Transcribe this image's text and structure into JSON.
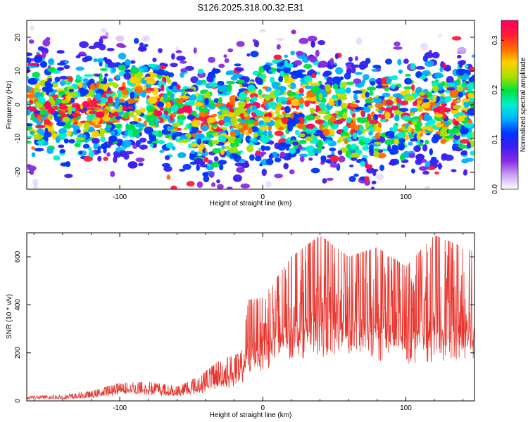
{
  "colors": {
    "frame": "#000000",
    "snr_line": "#e8352d"
  },
  "chart_data": [
    {
      "type": "heatmap",
      "title": "S126.2025.318.00.32.E31",
      "xlabel": "Height of straight line (km)",
      "ylabel": "Frequency (Hz)",
      "xlim": [
        -165,
        148
      ],
      "ylim": [
        -25,
        25
      ],
      "xticks": [
        -100,
        0,
        100
      ],
      "xtick_labels": [
        "-100",
        "0",
        "100"
      ],
      "yticks": [
        20,
        10,
        0,
        -10,
        -20
      ],
      "ytick_labels": [
        "20",
        "10",
        "0",
        "-10",
        "-20"
      ],
      "colorbar": {
        "label": "Normalized spectral amplitude",
        "range": [
          0.0,
          0.34
        ],
        "ticks": [
          0.0,
          0.1,
          0.2,
          0.3
        ],
        "tick_labels": [
          "0.0",
          "0.1",
          "0.2",
          "0.3"
        ],
        "colormap": [
          "#ffffff",
          "#c9a3f5",
          "#8a2be2",
          "#3b1ef0",
          "#0033ff",
          "#00b0ff",
          "#00f0d0",
          "#00e040",
          "#a8e000",
          "#ffd000",
          "#ff6a00",
          "#ff1a3a",
          "#ff0060"
        ]
      },
      "band_center_hz": [
        [
          -165,
          0
        ],
        [
          -130,
          -2
        ],
        [
          -100,
          0
        ],
        [
          -80,
          0
        ],
        [
          -50,
          -4
        ],
        [
          -30,
          -6
        ],
        [
          -15,
          -3
        ],
        [
          0,
          -1
        ],
        [
          25,
          0
        ],
        [
          45,
          -2
        ],
        [
          60,
          -5
        ],
        [
          80,
          -4
        ],
        [
          100,
          -3
        ],
        [
          120,
          -2
        ],
        [
          148,
          -1
        ]
      ],
      "band_halfwidth_hz": 12,
      "peak_amplitude": 0.34
    },
    {
      "type": "line",
      "xlabel": "Height of straight line (km)",
      "ylabel": "SNR (10 * v/v)",
      "xlim": [
        -165,
        148
      ],
      "ylim": [
        0,
        700
      ],
      "xticks": [
        -100,
        0,
        100
      ],
      "xtick_labels": [
        "-100",
        "0",
        "100"
      ],
      "yticks": [
        0,
        200,
        400,
        600
      ],
      "ytick_labels": [
        "0",
        "200",
        "400",
        "600"
      ],
      "series": [
        {
          "name": "SNR",
          "envelope_x": [
            -165,
            -140,
            -120,
            -100,
            -80,
            -60,
            -45,
            -30,
            -15,
            -10,
            0,
            20,
            40,
            60,
            80,
            100,
            120,
            148
          ],
          "envelope_max": [
            20,
            25,
            40,
            75,
            80,
            60,
            100,
            170,
            200,
            420,
            430,
            600,
            690,
            600,
            640,
            560,
            690,
            620
          ],
          "envelope_mean": [
            10,
            10,
            15,
            35,
            35,
            25,
            40,
            70,
            90,
            160,
            180,
            230,
            260,
            250,
            240,
            220,
            230,
            220
          ]
        }
      ]
    }
  ]
}
